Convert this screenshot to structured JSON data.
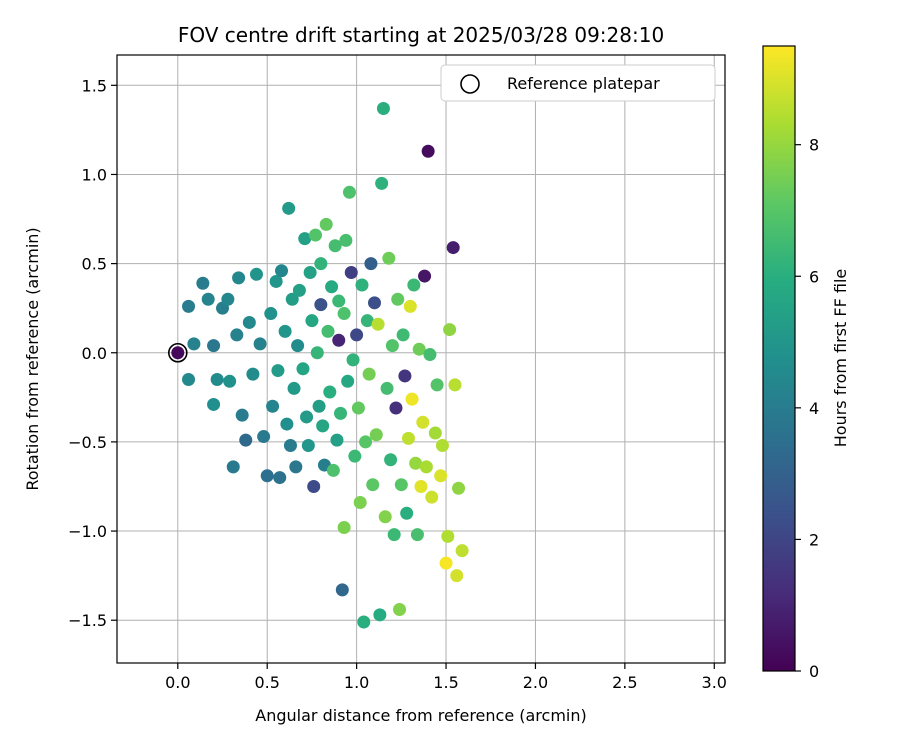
{
  "chart_data": {
    "type": "scatter",
    "title": "FOV centre drift starting at 2025/03/28 09:28:10",
    "xlabel": "Angular distance from reference (arcmin)",
    "ylabel": "Rotation from reference (arcmin)",
    "xlim": [
      -0.34,
      3.06
    ],
    "ylim": [
      -1.74,
      1.67
    ],
    "x_ticks": [
      "0.0",
      "0.5",
      "1.0",
      "1.5",
      "2.0",
      "2.5",
      "3.0"
    ],
    "y_ticks": [
      "1.5",
      "1.0",
      "0.5",
      "0.0",
      "−0.5",
      "−1.0",
      "−1.5"
    ],
    "grid": true,
    "legend": {
      "position": "top-right",
      "entries": [
        "Reference platepar"
      ]
    },
    "reference_point": {
      "x": 0.0,
      "y": 0.0
    },
    "colorbar": {
      "label": "Hours from first FF file",
      "range": [
        0,
        9.5
      ],
      "ticks": [
        "0",
        "2",
        "4",
        "6",
        "8"
      ],
      "colormap": "viridis"
    },
    "series": [
      {
        "color_value": "hours",
        "points": [
          [
            0.0,
            0.0,
            0.2
          ],
          [
            0.06,
            -0.15,
            4.5
          ],
          [
            0.06,
            0.26,
            4.0
          ],
          [
            0.09,
            0.05,
            4.2
          ],
          [
            0.14,
            0.39,
            4.0
          ],
          [
            0.17,
            0.3,
            4.3
          ],
          [
            0.2,
            -0.29,
            4.7
          ],
          [
            0.2,
            0.04,
            3.8
          ],
          [
            0.22,
            -0.15,
            4.6
          ],
          [
            0.25,
            0.25,
            4.1
          ],
          [
            0.28,
            0.3,
            4.4
          ],
          [
            0.29,
            -0.16,
            4.8
          ],
          [
            0.31,
            -0.64,
            3.9
          ],
          [
            0.33,
            0.1,
            4.2
          ],
          [
            0.34,
            0.42,
            4.4
          ],
          [
            0.36,
            -0.35,
            4.0
          ],
          [
            0.38,
            -0.49,
            3.3
          ],
          [
            0.4,
            0.17,
            4.5
          ],
          [
            0.42,
            -0.12,
            4.6
          ],
          [
            0.44,
            0.44,
            4.9
          ],
          [
            0.46,
            0.05,
            4.2
          ],
          [
            0.48,
            -0.47,
            3.9
          ],
          [
            0.5,
            -0.69,
            3.5
          ],
          [
            0.52,
            0.22,
            4.8
          ],
          [
            0.53,
            -0.3,
            4.3
          ],
          [
            0.55,
            0.4,
            5.0
          ],
          [
            0.56,
            -0.1,
            5.2
          ],
          [
            0.57,
            -0.7,
            3.6
          ],
          [
            0.58,
            0.46,
            4.4
          ],
          [
            0.6,
            0.12,
            5.0
          ],
          [
            0.61,
            -0.4,
            4.7
          ],
          [
            0.62,
            0.81,
            5.2
          ],
          [
            0.63,
            -0.52,
            4.0
          ],
          [
            0.64,
            0.3,
            5.3
          ],
          [
            0.65,
            -0.2,
            5.1
          ],
          [
            0.66,
            -0.64,
            3.8
          ],
          [
            0.67,
            0.04,
            4.6
          ],
          [
            0.68,
            0.35,
            5.4
          ],
          [
            0.7,
            -0.09,
            5.6
          ],
          [
            0.71,
            0.64,
            5.4
          ],
          [
            0.72,
            -0.36,
            5.2
          ],
          [
            0.73,
            -0.52,
            5.0
          ],
          [
            0.74,
            0.45,
            5.5
          ],
          [
            0.75,
            0.18,
            5.7
          ],
          [
            0.76,
            -0.75,
            2.2
          ],
          [
            0.77,
            0.66,
            6.9
          ],
          [
            0.78,
            0.0,
            6.3
          ],
          [
            0.79,
            -0.3,
            5.3
          ],
          [
            0.8,
            0.27,
            2.4
          ],
          [
            0.8,
            0.5,
            6.2
          ],
          [
            0.81,
            -0.41,
            5.6
          ],
          [
            0.82,
            -0.63,
            4.1
          ],
          [
            0.83,
            0.72,
            7.2
          ],
          [
            0.84,
            0.12,
            6.6
          ],
          [
            0.85,
            -0.22,
            6.0
          ],
          [
            0.86,
            0.37,
            5.8
          ],
          [
            0.87,
            -0.66,
            6.8
          ],
          [
            0.88,
            0.6,
            6.6
          ],
          [
            0.89,
            -0.49,
            5.4
          ],
          [
            0.9,
            0.07,
            1.0
          ],
          [
            0.9,
            0.29,
            6.4
          ],
          [
            0.91,
            -0.34,
            6.3
          ],
          [
            0.92,
            -1.33,
            3.2
          ],
          [
            0.93,
            0.22,
            6.8
          ],
          [
            0.93,
            -0.98,
            7.6
          ],
          [
            0.94,
            0.63,
            6.7
          ],
          [
            0.95,
            -0.16,
            5.7
          ],
          [
            0.96,
            0.9,
            6.8
          ],
          [
            0.97,
            0.45,
            1.8
          ],
          [
            0.98,
            -0.04,
            6.2
          ],
          [
            0.99,
            -0.58,
            6.4
          ],
          [
            1.0,
            0.1,
            2.1
          ],
          [
            1.01,
            -0.31,
            7.2
          ],
          [
            1.02,
            -0.84,
            7.6
          ],
          [
            1.03,
            0.38,
            6.1
          ],
          [
            1.04,
            -1.51,
            6.0
          ],
          [
            1.05,
            -0.5,
            7.0
          ],
          [
            1.06,
            0.18,
            6.3
          ],
          [
            1.07,
            -0.12,
            7.5
          ],
          [
            1.08,
            0.5,
            2.9
          ],
          [
            1.09,
            -0.74,
            7.1
          ],
          [
            1.1,
            0.28,
            2.3
          ],
          [
            1.11,
            -0.46,
            7.5
          ],
          [
            1.12,
            0.16,
            8.5
          ],
          [
            1.13,
            -1.47,
            5.9
          ],
          [
            1.14,
            0.95,
            6.1
          ],
          [
            1.15,
            1.37,
            6.0
          ],
          [
            1.16,
            -0.92,
            7.7
          ],
          [
            1.17,
            -0.2,
            6.6
          ],
          [
            1.18,
            0.53,
            7.4
          ],
          [
            1.19,
            -0.6,
            6.2
          ],
          [
            1.2,
            0.04,
            6.9
          ],
          [
            1.21,
            -1.02,
            6.4
          ],
          [
            1.22,
            -0.31,
            1.3
          ],
          [
            1.23,
            0.3,
            7.2
          ],
          [
            1.24,
            -1.44,
            7.7
          ],
          [
            1.25,
            -0.74,
            7.0
          ],
          [
            1.26,
            0.1,
            6.5
          ],
          [
            1.27,
            -0.13,
            1.5
          ],
          [
            1.28,
            -0.9,
            6.0
          ],
          [
            1.29,
            -0.48,
            8.6
          ],
          [
            1.3,
            0.26,
            9.0
          ],
          [
            1.31,
            -0.26,
            9.3
          ],
          [
            1.32,
            0.38,
            6.4
          ],
          [
            1.33,
            -0.62,
            8.0
          ],
          [
            1.34,
            -1.02,
            6.7
          ],
          [
            1.35,
            0.02,
            7.4
          ],
          [
            1.36,
            -0.75,
            9.1
          ],
          [
            1.37,
            -0.39,
            8.9
          ],
          [
            1.38,
            0.43,
            0.6
          ],
          [
            1.39,
            -0.64,
            8.3
          ],
          [
            1.4,
            1.13,
            0.3
          ],
          [
            1.41,
            -0.01,
            6.6
          ],
          [
            1.42,
            -0.81,
            8.8
          ],
          [
            1.44,
            -0.45,
            8.2
          ],
          [
            1.45,
            -0.18,
            6.9
          ],
          [
            1.47,
            -0.69,
            9.0
          ],
          [
            1.48,
            -0.52,
            8.4
          ],
          [
            1.5,
            -1.18,
            9.4
          ],
          [
            1.51,
            -1.03,
            8.4
          ],
          [
            1.52,
            0.13,
            7.9
          ],
          [
            1.54,
            0.59,
            0.8
          ],
          [
            1.55,
            -0.18,
            8.5
          ],
          [
            1.56,
            -1.25,
            8.9
          ],
          [
            1.57,
            -0.76,
            7.9
          ],
          [
            1.59,
            -1.11,
            8.6
          ]
        ]
      }
    ]
  }
}
